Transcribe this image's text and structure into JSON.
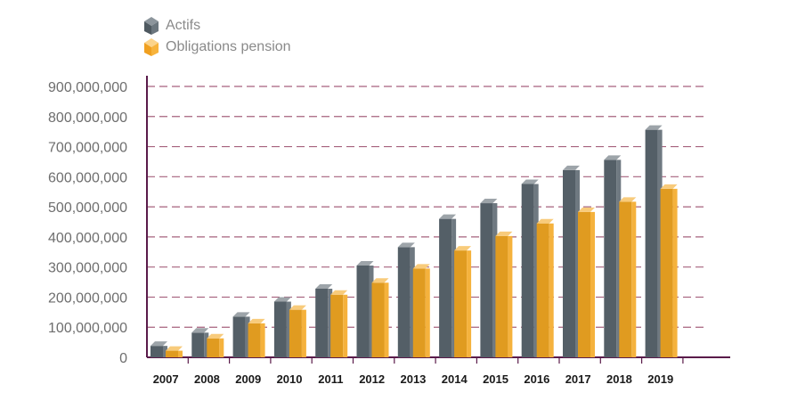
{
  "chart_data": {
    "type": "bar",
    "title": "",
    "xlabel": "",
    "ylabel": "",
    "categories": [
      "2007",
      "2008",
      "2009",
      "2010",
      "2011",
      "2012",
      "2013",
      "2014",
      "2015",
      "2016",
      "2017",
      "2018",
      "2019"
    ],
    "series": [
      {
        "name": "Actifs",
        "color": "#5b6770",
        "values": [
          38000000,
          82000000,
          135000000,
          185000000,
          228000000,
          305000000,
          366000000,
          460000000,
          512000000,
          576000000,
          622000000,
          656000000,
          756000000
        ]
      },
      {
        "name": "Obligations pension",
        "color": "#f4a823",
        "values": [
          22000000,
          63000000,
          113000000,
          158000000,
          208000000,
          248000000,
          295000000,
          355000000,
          403000000,
          445000000,
          483000000,
          517000000,
          560000000
        ]
      }
    ],
    "ylim": [
      0,
      900000000
    ],
    "yticks": [
      "0",
      "100,000,000",
      "200,000,000",
      "300,000,000",
      "400,000,000",
      "500,000,000",
      "600,000,000",
      "700,000,000",
      "800,000,000",
      "900,000,000"
    ],
    "grid": true,
    "legend_position": "top-left",
    "axis_color": "#5a1b4a",
    "grid_color": "#a6627d"
  }
}
